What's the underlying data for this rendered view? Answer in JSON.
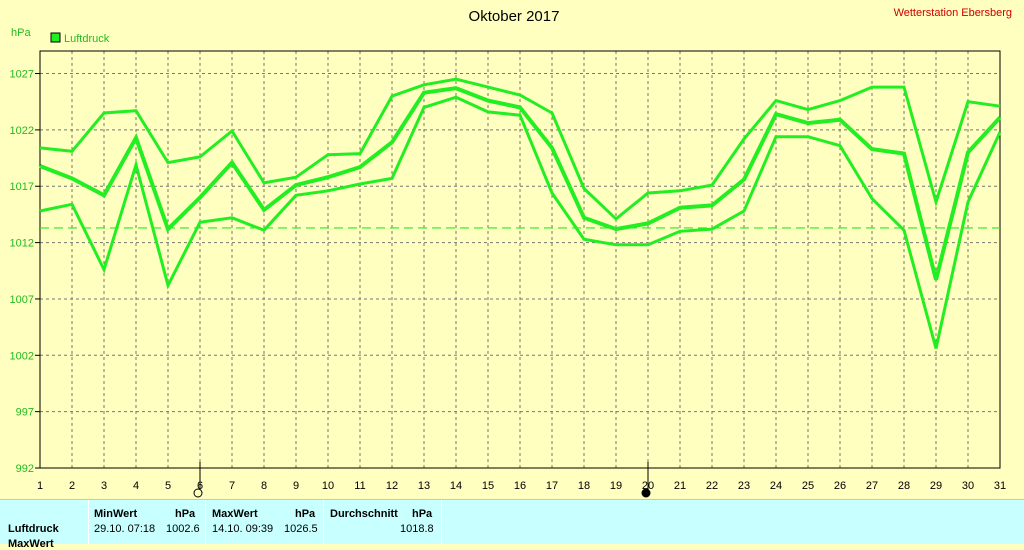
{
  "chart_data": {
    "type": "line",
    "title": "Oktober 2017",
    "station": "Wetterstation Ebersberg",
    "ylabel": "hPa",
    "legend": [
      "Luftdruck"
    ],
    "legend_position": "top-left",
    "ylim": [
      992,
      1029
    ],
    "yticks": [
      992,
      997,
      1002,
      1007,
      1012,
      1017,
      1022,
      1027
    ],
    "x": [
      1,
      2,
      3,
      4,
      5,
      6,
      7,
      8,
      9,
      10,
      11,
      12,
      13,
      14,
      15,
      16,
      17,
      18,
      19,
      20,
      21,
      22,
      23,
      24,
      25,
      26,
      27,
      28,
      29,
      30,
      31
    ],
    "grid": true,
    "average_line": 1013.3,
    "series": [
      {
        "name": "Luftdruck",
        "role": "max",
        "values": [
          1020.4,
          1020.1,
          1023.5,
          1023.7,
          1019.1,
          1019.6,
          1021.9,
          1017.3,
          1017.8,
          1019.8,
          1019.9,
          1025.0,
          1026.0,
          1026.5,
          1025.8,
          1025.1,
          1023.5,
          1016.8,
          1014.1,
          1016.4,
          1016.6,
          1017.1,
          1021.2,
          1024.6,
          1023.8,
          1024.6,
          1025.8,
          1025.8,
          1015.6,
          1024.5,
          1024.1
        ]
      },
      {
        "name": "Luftdruck",
        "role": "mean",
        "values": [
          1018.8,
          1017.7,
          1016.2,
          1021.3,
          1013.2,
          1016.0,
          1019.1,
          1014.9,
          1017.1,
          1017.8,
          1018.7,
          1020.9,
          1025.3,
          1025.7,
          1024.6,
          1024.0,
          1020.4,
          1014.2,
          1013.2,
          1013.7,
          1015.1,
          1015.3,
          1017.6,
          1023.4,
          1022.6,
          1022.9,
          1020.3,
          1019.9,
          1008.7,
          1020.0,
          1023.1
        ]
      },
      {
        "name": "Luftdruck",
        "role": "min",
        "values": [
          1014.8,
          1015.4,
          1009.6,
          1018.9,
          1008.2,
          1013.8,
          1014.2,
          1013.1,
          1016.2,
          1016.6,
          1017.2,
          1017.7,
          1024.0,
          1024.9,
          1023.6,
          1023.3,
          1016.4,
          1012.3,
          1011.8,
          1011.8,
          1013.0,
          1013.2,
          1014.8,
          1021.4,
          1021.4,
          1020.6,
          1015.9,
          1013.1,
          1002.6,
          1015.6,
          1021.8
        ]
      }
    ],
    "markers": [
      {
        "day": 6,
        "symbol": "moon-outline"
      },
      {
        "day": 20,
        "symbol": "moon-filled"
      }
    ]
  },
  "stats": {
    "rows": [
      "Luftdruck",
      "MaxWert"
    ],
    "min": {
      "header": "MinWert",
      "unit": "hPa",
      "datetime": "29.10.  07:18",
      "value": "1002.6"
    },
    "max": {
      "header": "MaxWert",
      "unit": "hPa",
      "datetime": "14.10.  09:39",
      "value": "1026.5"
    },
    "avg": {
      "header": "Durchschnitt",
      "unit": "hPa",
      "value": "1018.8"
    }
  },
  "colors": {
    "background": "#ffffc0",
    "series": "#22ee22",
    "axis_text": "#22bb22",
    "station_text": "#cc0000",
    "stats_bg": "#c8ffff"
  }
}
